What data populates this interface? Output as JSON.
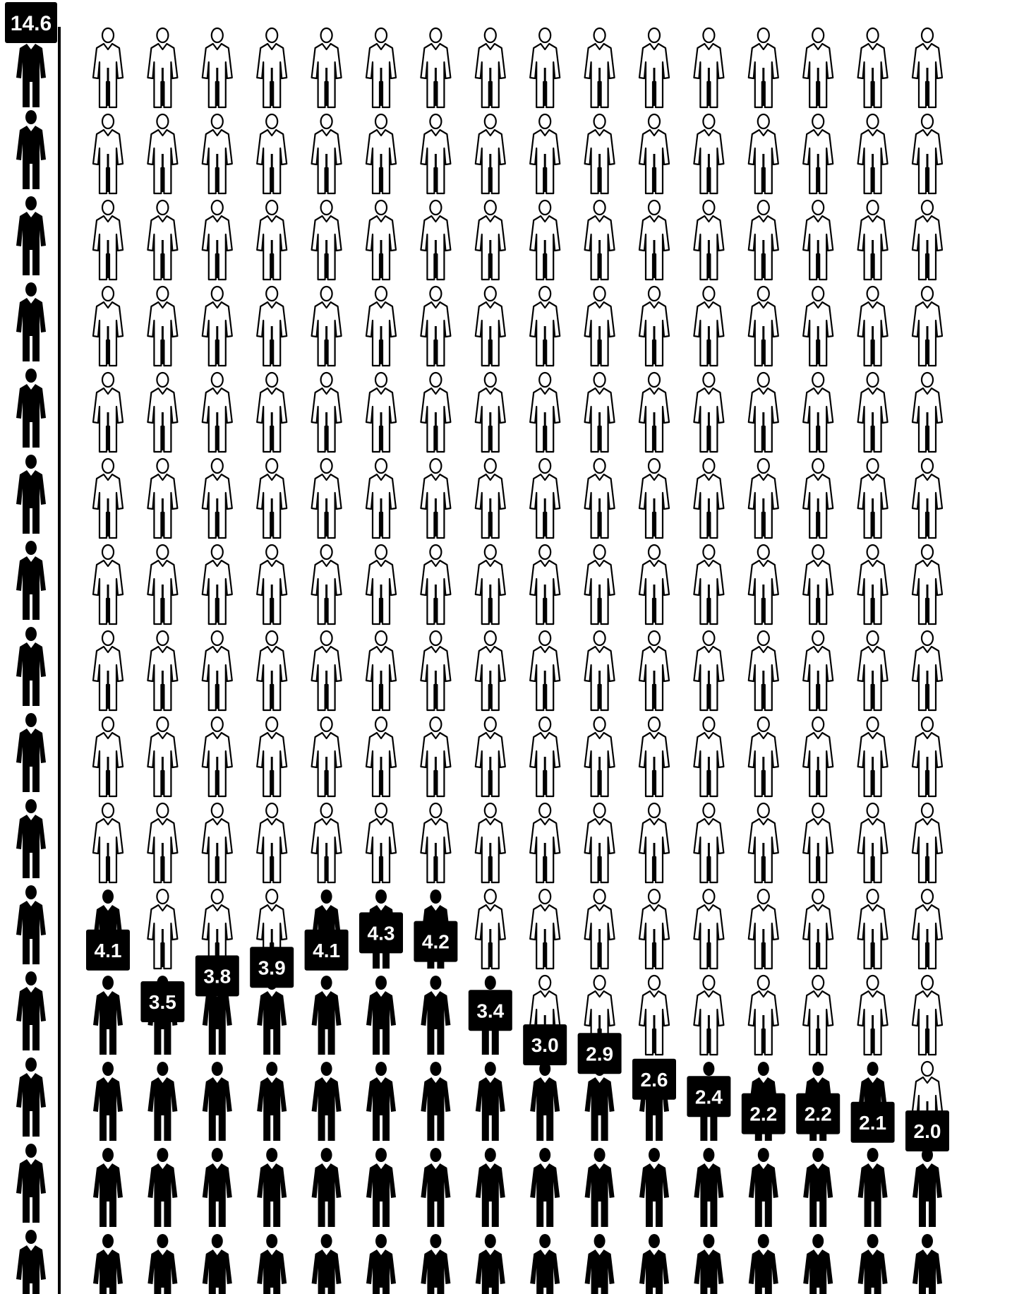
{
  "chart_data": {
    "type": "pictogram",
    "icon": "person-icon",
    "colors": {
      "filled": "#000000",
      "empty": "#ffffff",
      "outline": "#000000",
      "label_box": "#000000",
      "label_text": "#ffffff"
    },
    "highlight": {
      "value": 14.6,
      "label": "14.6",
      "filled_icons": 15
    },
    "columns": [
      {
        "value": 4.1,
        "label": "4.1"
      },
      {
        "value": 3.5,
        "label": "3.5"
      },
      {
        "value": 3.8,
        "label": "3.8"
      },
      {
        "value": 3.9,
        "label": "3.9"
      },
      {
        "value": 4.1,
        "label": "4.1"
      },
      {
        "value": 4.3,
        "label": "4.3"
      },
      {
        "value": 4.2,
        "label": "4.2"
      },
      {
        "value": 3.4,
        "label": "3.4"
      },
      {
        "value": 3.0,
        "label": "3.0"
      },
      {
        "value": 2.9,
        "label": "2.9"
      },
      {
        "value": 2.6,
        "label": "2.6"
      },
      {
        "value": 2.4,
        "label": "2.4"
      },
      {
        "value": 2.2,
        "label": "2.2"
      },
      {
        "value": 2.2,
        "label": "2.2"
      },
      {
        "value": 2.1,
        "label": "2.1"
      },
      {
        "value": 2.0,
        "label": "2.0"
      }
    ],
    "total_icons_per_column": 15,
    "divider_line": true
  }
}
